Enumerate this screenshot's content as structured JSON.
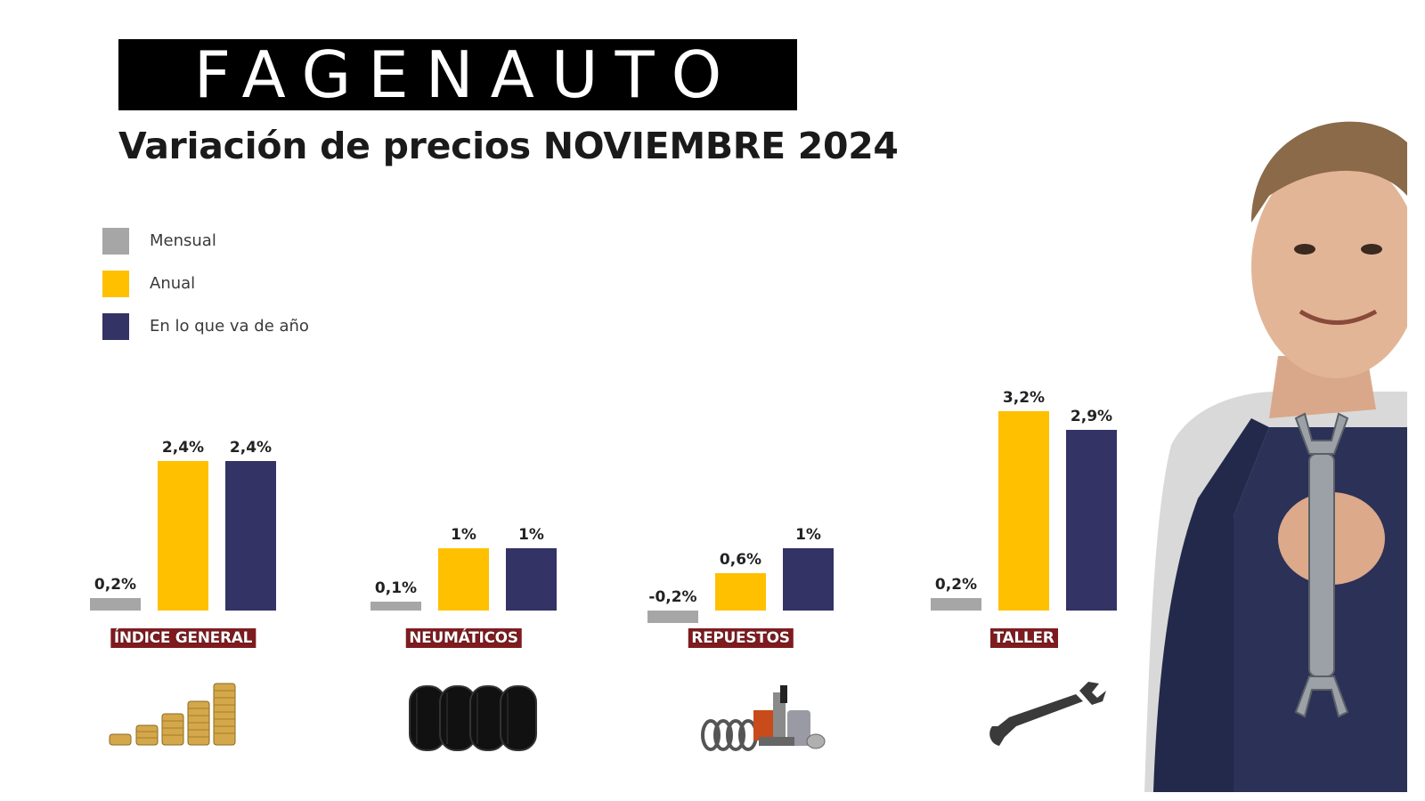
{
  "brand": {
    "logo_text": "FAGENAUTO"
  },
  "header": {
    "title": "Variación de precios NOVIEMBRE 2024"
  },
  "legend": [
    {
      "label": "Mensual",
      "color": "#a6a6a6"
    },
    {
      "label": "Anual",
      "color": "#ffc000"
    },
    {
      "label": "En lo que va de año",
      "color": "#333366"
    }
  ],
  "chart_data": {
    "type": "bar",
    "categories": [
      "ÍNDICE GENERAL",
      "NEUMÁTICOS",
      "REPUESTOS",
      "TALLER"
    ],
    "series": [
      {
        "name": "Mensual",
        "values": [
          0.2,
          0.1,
          -0.2,
          0.2
        ],
        "labels": [
          "0,2%",
          "0,1%",
          "-0,2%",
          "0,2%"
        ],
        "color": "#a6a6a6"
      },
      {
        "name": "Anual",
        "values": [
          2.4,
          1.0,
          0.6,
          3.2
        ],
        "labels": [
          "2,4%",
          "1%",
          "0,6%",
          "3,2%"
        ],
        "color": "#ffc000"
      },
      {
        "name": "En lo que va de año",
        "values": [
          2.4,
          1.0,
          1.0,
          2.9
        ],
        "labels": [
          "2,4%",
          "1%",
          "1%",
          "2,9%"
        ],
        "color": "#333366"
      }
    ],
    "grid": false,
    "legend_position": "top-left"
  },
  "icons": [
    "coins-stack-icon",
    "tires-icon",
    "car-parts-icon",
    "wrench-icon",
    "mechanic-illustration"
  ]
}
